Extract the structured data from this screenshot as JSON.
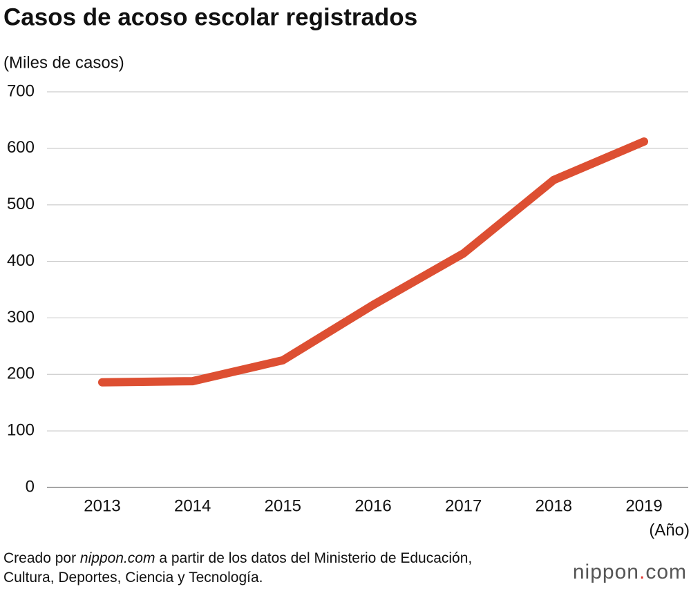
{
  "chart_data": {
    "type": "line",
    "title": "Casos de acoso escolar registrados",
    "y_label": "(Miles de casos)",
    "x_label": "(Año)",
    "categories": [
      "2013",
      "2014",
      "2015",
      "2016",
      "2017",
      "2018",
      "2019"
    ],
    "series": [
      {
        "name": "Casos",
        "color": "#dd4f32",
        "values": [
          186,
          188,
          225,
          323,
          414,
          544,
          612
        ]
      }
    ],
    "ylim": [
      0,
      700
    ],
    "yticks": [
      0,
      100,
      200,
      300,
      400,
      500,
      600,
      700
    ],
    "grid": true,
    "source": [
      "Creado por ",
      "nippon.com",
      " a partir de los datos del Ministerio de Educación, Cultura, Deportes, Ciencia y Tecnología."
    ],
    "logo": [
      "nippon",
      ".",
      "com"
    ]
  }
}
